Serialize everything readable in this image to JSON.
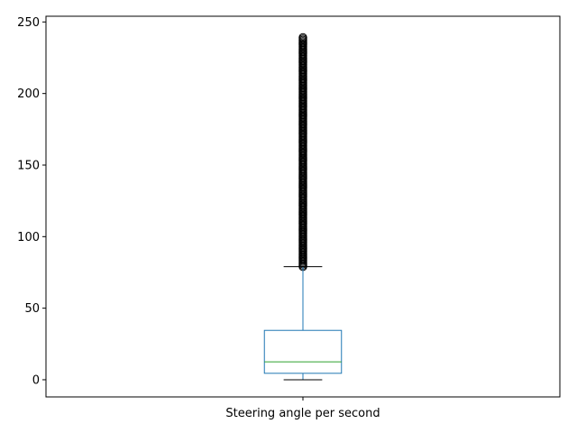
{
  "chart_data": {
    "type": "box",
    "categories": [
      "Steering angle per second"
    ],
    "series": [
      {
        "q1": 4.5,
        "median": 12.5,
        "q3": 34.5,
        "whisker_low": 0,
        "whisker_high": 79,
        "outliers_range": [
          79,
          240
        ]
      }
    ],
    "ylim": [
      -12,
      254
    ],
    "yticks": [
      0,
      50,
      100,
      150,
      200,
      250
    ],
    "title": "",
    "xlabel": "",
    "ylabel": "",
    "grid": false,
    "colors": {
      "box": "#1f77b4",
      "median": "#2ca02c",
      "whisker": "#1f77b4",
      "cap": "#000000",
      "outlier": "#000000"
    }
  }
}
